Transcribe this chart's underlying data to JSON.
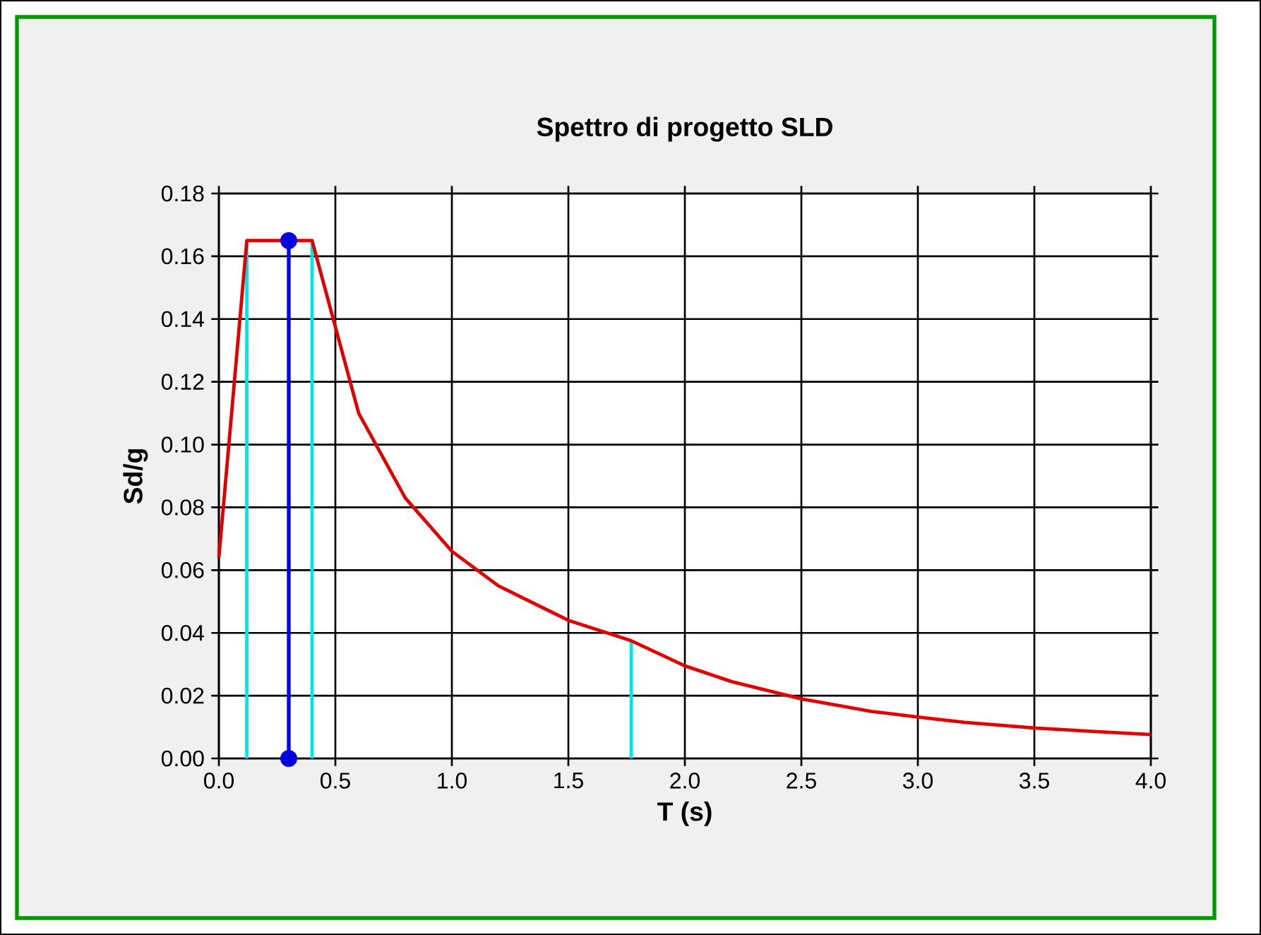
{
  "chart_data": {
    "type": "line",
    "title": "Spettro di progetto SLD",
    "xlabel": "T (s)",
    "ylabel": "Sd/g",
    "xlim": [
      0,
      4
    ],
    "ylim": [
      0,
      0.18
    ],
    "xticks": [
      {
        "value": 0,
        "label": "0.0"
      },
      0.5,
      {
        "value": 1,
        "label": "1.0"
      },
      1.5,
      {
        "value": 2,
        "label": "2.0"
      },
      2.5,
      {
        "value": 3,
        "label": "3.0"
      },
      3.5,
      {
        "value": 4,
        "label": "4.0"
      }
    ],
    "yticks": [
      {
        "value": 0,
        "label": "0.00"
      },
      0.02,
      0.04,
      0.06,
      0.08,
      {
        "value": 0.1,
        "label": "0.10"
      },
      0.12,
      0.14,
      0.16,
      0.18
    ],
    "grid": true,
    "series": [
      {
        "color": "#00e5e5",
        "x": [
          0.12,
          0.12
        ],
        "values": [
          0,
          0.165
        ]
      },
      {
        "color": "#00e5e5",
        "x": [
          0.4,
          0.4
        ],
        "values": [
          0,
          0.165
        ]
      },
      {
        "color": "#00e5e5",
        "x": [
          1.77,
          1.77
        ],
        "values": [
          0,
          0.0378
        ]
      },
      {
        "color": "#e00000",
        "x": [
          0,
          0.12,
          0.4,
          0.6,
          0.8,
          1.0,
          1.2,
          1.5,
          1.77,
          2.0,
          2.2,
          2.5,
          2.8,
          3.0,
          3.2,
          3.5,
          3.8,
          4.0
        ],
        "values": [
          0.064,
          0.165,
          0.165,
          0.11,
          0.083,
          0.066,
          0.055,
          0.044,
          0.0375,
          0.0295,
          0.0245,
          0.019,
          0.015,
          0.0132,
          0.0115,
          0.0097,
          0.0084,
          0.0076
        ]
      },
      {
        "color": "#0000e0",
        "marker": "circle",
        "x": [
          0.3,
          0.3
        ],
        "values": [
          0,
          0.165
        ]
      }
    ]
  }
}
